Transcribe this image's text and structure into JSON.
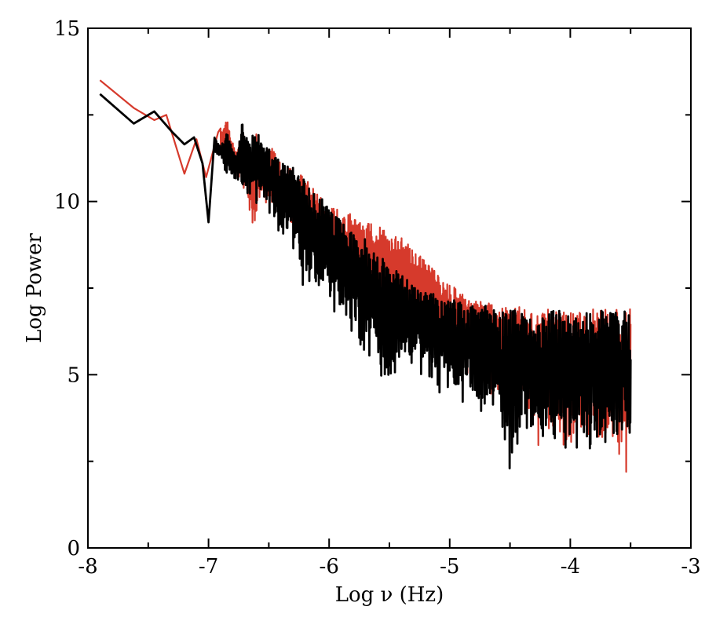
{
  "chart_data": {
    "type": "line",
    "title": "",
    "xlabel": "Log ν (Hz)",
    "ylabel": "Log Power",
    "xlim": [
      -8,
      -3
    ],
    "ylim": [
      0,
      15
    ],
    "x_ticks": [
      -8,
      -7,
      -6,
      -5,
      -4,
      -3
    ],
    "x_tick_labels": [
      "-8",
      "-7",
      "-6",
      "-5",
      "-4",
      "-3"
    ],
    "y_ticks": [
      0,
      5,
      10,
      15
    ],
    "y_tick_labels": [
      "0",
      "5",
      "10",
      "15"
    ],
    "grid": false,
    "legend": "none",
    "series": [
      {
        "color": "#d63a2c",
        "x": [
          -7.9,
          -7.62,
          -7.45,
          -7.35,
          -7.2,
          -7.1,
          -7.02,
          -6.92,
          -6.85,
          -6.78,
          -6.72,
          -6.66,
          -6.6,
          -6.55,
          -6.48,
          -6.4,
          -6.3,
          -6.2,
          -6.1,
          -6.0,
          -5.9,
          -5.8,
          -5.7,
          -5.6,
          -5.5,
          -5.4,
          -5.3,
          -5.2,
          -5.1,
          -5.0,
          -4.9,
          -4.8,
          -4.7,
          -4.6,
          -4.5,
          -4.4,
          -4.3,
          -4.2,
          -4.1,
          -4.0,
          -3.9,
          -3.8,
          -3.7,
          -3.6,
          -3.5
        ],
        "y": [
          13.5,
          12.7,
          12.35,
          12.5,
          10.8,
          11.8,
          10.7,
          12.0,
          12.4,
          11.5,
          12.1,
          11.0,
          12.1,
          11.4,
          11.7,
          11.1,
          10.9,
          10.7,
          10.3,
          10.0,
          9.8,
          9.6,
          9.4,
          9.3,
          9.1,
          9.0,
          8.6,
          8.3,
          7.9,
          7.6,
          7.4,
          7.25,
          7.15,
          7.05,
          7.0,
          6.95,
          6.9,
          6.9,
          6.9,
          6.9,
          6.9,
          6.9,
          6.9,
          6.9,
          6.9
        ],
        "min_y": [
          13.5,
          12.7,
          12.35,
          12.0,
          10.8,
          11.0,
          10.5,
          11.5,
          10.8,
          10.6,
          10.5,
          9.5,
          9.3,
          10.0,
          9.8,
          9.4,
          9.0,
          8.7,
          8.3,
          7.9,
          7.5,
          7.2,
          7.0,
          6.8,
          6.6,
          6.4,
          6.2,
          6.0,
          5.7,
          5.4,
          5.1,
          4.8,
          4.5,
          4.2,
          3.9,
          3.6,
          3.4,
          3.2,
          3.0,
          2.9,
          2.8,
          2.7,
          2.6,
          2.5,
          1.8
        ]
      },
      {
        "color": "#000000",
        "x": [
          -7.9,
          -7.62,
          -7.45,
          -7.3,
          -7.2,
          -7.12,
          -7.05,
          -7.0,
          -6.95,
          -6.9,
          -6.85,
          -6.78,
          -6.72,
          -6.66,
          -6.6,
          -6.55,
          -6.48,
          -6.4,
          -6.3,
          -6.2,
          -6.1,
          -6.0,
          -5.9,
          -5.8,
          -5.7,
          -5.6,
          -5.5,
          -5.4,
          -5.3,
          -5.2,
          -5.1,
          -5.0,
          -4.9,
          -4.8,
          -4.7,
          -4.6,
          -4.5,
          -4.4,
          -4.3,
          -4.2,
          -4.1,
          -4.0,
          -3.9,
          -3.8,
          -3.7,
          -3.6,
          -3.5
        ],
        "y": [
          13.1,
          12.25,
          12.6,
          12.0,
          11.65,
          11.85,
          11.1,
          9.4,
          11.9,
          11.6,
          12.0,
          11.3,
          12.4,
          11.7,
          12.3,
          11.6,
          11.5,
          11.1,
          11.0,
          10.6,
          10.2,
          9.9,
          9.5,
          9.2,
          8.9,
          8.5,
          8.2,
          7.9,
          7.6,
          7.4,
          7.3,
          7.25,
          7.15,
          7.05,
          7.0,
          6.95,
          6.9,
          6.9,
          6.9,
          6.9,
          6.9,
          6.9,
          6.9,
          6.9,
          6.9,
          6.9,
          6.9
        ],
        "min_y": [
          13.1,
          12.25,
          12.6,
          12.0,
          11.65,
          11.5,
          10.9,
          9.4,
          11.4,
          11.2,
          10.6,
          10.5,
          10.4,
          10.0,
          9.9,
          9.8,
          9.5,
          9.0,
          8.6,
          7.7,
          7.5,
          7.3,
          6.6,
          6.2,
          5.6,
          5.1,
          4.4,
          5.3,
          5.0,
          4.9,
          4.6,
          4.3,
          4.2,
          4.0,
          3.8,
          3.6,
          2.1,
          3.2,
          3.1,
          3.0,
          2.9,
          2.8,
          2.7,
          2.6,
          2.6,
          2.6,
          2.5
        ]
      }
    ]
  }
}
